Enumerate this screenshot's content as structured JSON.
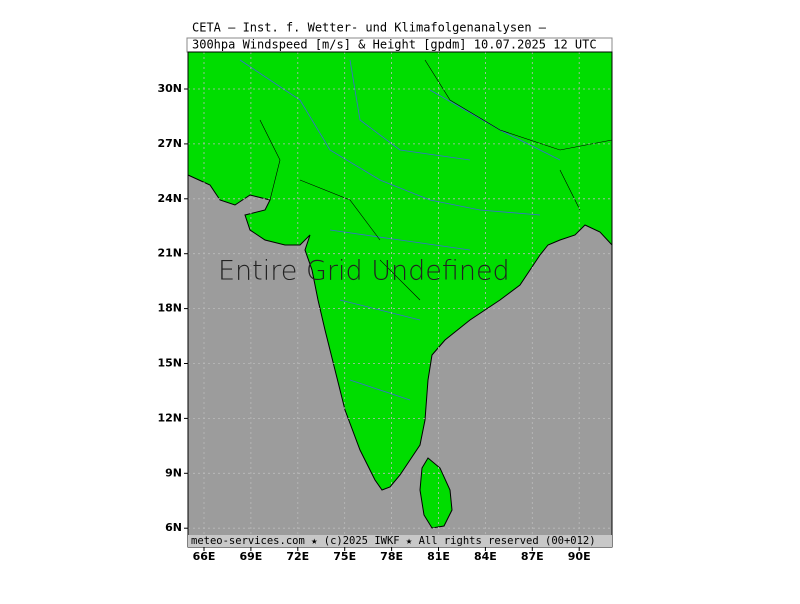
{
  "header": {
    "line1": "CETA – Inst. f. Wetter- und Klimafolgenanalysen –",
    "line2": "300hpa Windspeed [m/s] & Height [gpdm] 10.07.2025 12 UTC"
  },
  "map": {
    "overlay": "Entire Grid Undefined",
    "lat_labels": [
      "30N",
      "27N",
      "24N",
      "21N",
      "18N",
      "15N",
      "12N",
      "9N",
      "6N"
    ],
    "lon_labels": [
      "66E",
      "69E",
      "72E",
      "75E",
      "78E",
      "81E",
      "84E",
      "87E",
      "90E"
    ]
  },
  "footer": "meteo-services.com ★ (c)2025 IWKF ★ All rights reserved (00+012)"
}
